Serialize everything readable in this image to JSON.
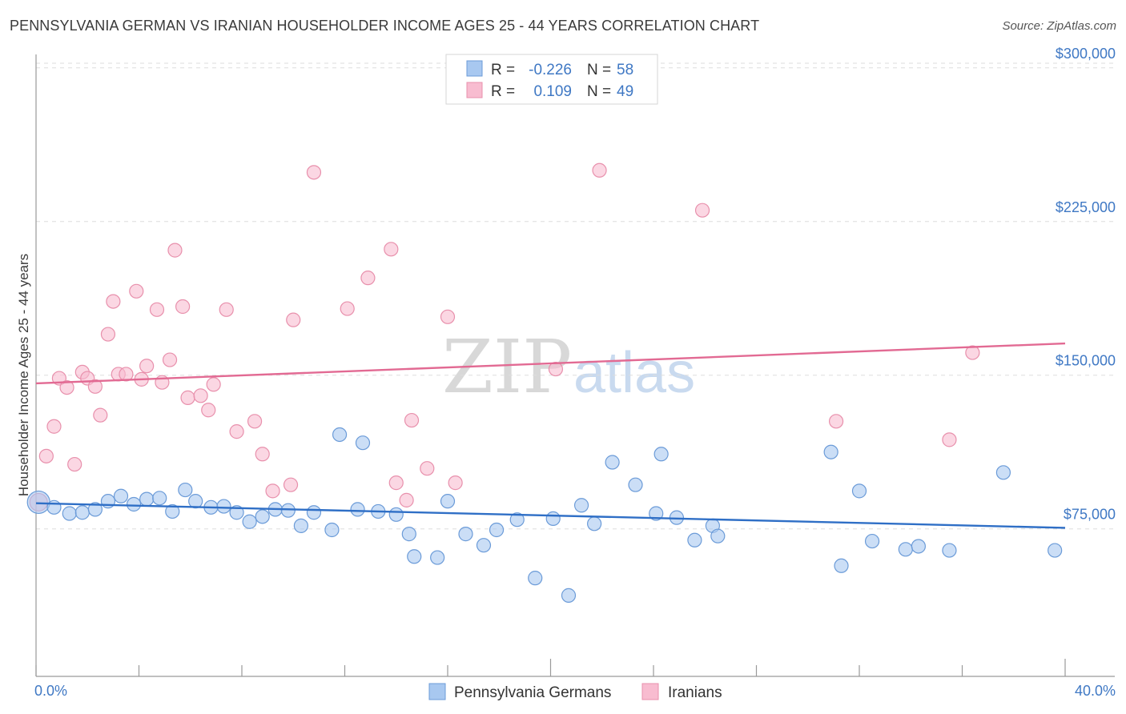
{
  "title": "PENNSYLVANIA GERMAN VS IRANIAN HOUSEHOLDER INCOME AGES 25 - 44 YEARS CORRELATION CHART",
  "source": "Source: ZipAtlas.com",
  "watermark": {
    "zip": "ZIP",
    "atlas": "atlas"
  },
  "legend": {
    "r_label": "R =",
    "n_label": "N =",
    "rows": [
      {
        "r": "-0.226",
        "n": "58",
        "color": "#a8c8f0",
        "stroke": "#6b9bd8"
      },
      {
        "r": "0.109",
        "n": "49",
        "color": "#f8bcd0",
        "stroke": "#e890ac"
      }
    ]
  },
  "bottom_legend": [
    "Pennsylvania Germans",
    "Iranians"
  ],
  "chart_data": {
    "type": "scatter",
    "title": "PENNSYLVANIA GERMAN VS IRANIAN HOUSEHOLDER INCOME AGES 25 - 44 YEARS CORRELATION CHART",
    "xlabel": "",
    "ylabel": "Householder Income Ages 25 - 44 years",
    "xlim": [
      0,
      40
    ],
    "ylim": [
      3000,
      305000
    ],
    "x_tick_labels": [
      "0.0%",
      "40.0%"
    ],
    "y_ticks": [
      75000,
      150000,
      225000,
      300000
    ],
    "y_tick_labels": [
      "$75,000",
      "$150,000",
      "$225,000",
      "$300,000"
    ],
    "grid": true,
    "series": [
      {
        "name": "Pennsylvania Germans",
        "color": "#a8c8f0",
        "stroke": "#6b9bd8",
        "trend": {
          "x": [
            0,
            40
          ],
          "y": [
            87500,
            75500
          ],
          "color": "#2f6fc6"
        },
        "points": [
          [
            0.1,
            88000
          ],
          [
            0.7,
            85500
          ],
          [
            1.3,
            82500
          ],
          [
            1.8,
            83000
          ],
          [
            2.3,
            84500
          ],
          [
            2.8,
            88500
          ],
          [
            3.3,
            91000
          ],
          [
            3.8,
            87000
          ],
          [
            4.3,
            89500
          ],
          [
            4.8,
            90000
          ],
          [
            5.3,
            83500
          ],
          [
            5.8,
            94000
          ],
          [
            6.2,
            88500
          ],
          [
            6.8,
            85500
          ],
          [
            7.3,
            86000
          ],
          [
            7.8,
            83000
          ],
          [
            8.3,
            78500
          ],
          [
            8.8,
            81000
          ],
          [
            9.3,
            84500
          ],
          [
            9.8,
            84000
          ],
          [
            10.3,
            76500
          ],
          [
            10.8,
            83000
          ],
          [
            11.5,
            74500
          ],
          [
            11.8,
            121000
          ],
          [
            12.5,
            84500
          ],
          [
            12.7,
            117000
          ],
          [
            13.3,
            83500
          ],
          [
            14.0,
            82000
          ],
          [
            14.5,
            72500
          ],
          [
            14.7,
            61500
          ],
          [
            15.6,
            61000
          ],
          [
            16.0,
            88500
          ],
          [
            16.7,
            72500
          ],
          [
            17.4,
            67000
          ],
          [
            17.9,
            74500
          ],
          [
            18.7,
            79500
          ],
          [
            19.4,
            51000
          ],
          [
            20.1,
            80000
          ],
          [
            20.7,
            42500
          ],
          [
            21.2,
            86500
          ],
          [
            21.7,
            77500
          ],
          [
            22.4,
            107500
          ],
          [
            23.3,
            96500
          ],
          [
            24.1,
            82500
          ],
          [
            24.3,
            111500
          ],
          [
            24.9,
            80500
          ],
          [
            25.6,
            69500
          ],
          [
            26.3,
            76500
          ],
          [
            26.5,
            71500
          ],
          [
            30.9,
            112500
          ],
          [
            31.3,
            57000
          ],
          [
            32.0,
            93500
          ],
          [
            32.5,
            69000
          ],
          [
            33.8,
            65000
          ],
          [
            34.3,
            66500
          ],
          [
            35.5,
            64500
          ],
          [
            37.6,
            102500
          ],
          [
            39.6,
            64500
          ]
        ]
      },
      {
        "name": "Iranians",
        "color": "#f8bcd0",
        "stroke": "#e890ac",
        "trend": {
          "x": [
            0,
            40
          ],
          "y": [
            146000,
            165500
          ],
          "color": "#e26a93"
        },
        "points": [
          [
            0.1,
            88000
          ],
          [
            0.4,
            110500
          ],
          [
            0.7,
            125000
          ],
          [
            0.9,
            148500
          ],
          [
            1.2,
            144000
          ],
          [
            1.5,
            106500
          ],
          [
            1.8,
            151500
          ],
          [
            2.0,
            148500
          ],
          [
            2.3,
            144500
          ],
          [
            2.5,
            130500
          ],
          [
            2.8,
            170000
          ],
          [
            3.0,
            186000
          ],
          [
            3.2,
            150500
          ],
          [
            3.5,
            150500
          ],
          [
            3.9,
            191000
          ],
          [
            4.1,
            148000
          ],
          [
            4.3,
            154500
          ],
          [
            4.7,
            182000
          ],
          [
            4.9,
            146500
          ],
          [
            5.2,
            157500
          ],
          [
            5.4,
            211000
          ],
          [
            5.7,
            183500
          ],
          [
            5.9,
            139000
          ],
          [
            6.4,
            140000
          ],
          [
            6.7,
            133000
          ],
          [
            6.9,
            145500
          ],
          [
            7.4,
            182000
          ],
          [
            7.8,
            122500
          ],
          [
            8.5,
            127500
          ],
          [
            8.8,
            111500
          ],
          [
            9.2,
            93500
          ],
          [
            9.9,
            96500
          ],
          [
            10.0,
            177000
          ],
          [
            10.8,
            249000
          ],
          [
            12.1,
            182500
          ],
          [
            12.9,
            197500
          ],
          [
            13.8,
            211500
          ],
          [
            14.0,
            97500
          ],
          [
            14.4,
            89000
          ],
          [
            14.6,
            128000
          ],
          [
            15.2,
            104500
          ],
          [
            16.0,
            178500
          ],
          [
            16.3,
            97500
          ],
          [
            20.2,
            153000
          ],
          [
            21.9,
            250000
          ],
          [
            25.9,
            230500
          ],
          [
            31.1,
            127500
          ],
          [
            35.5,
            118500
          ],
          [
            36.4,
            161000
          ]
        ]
      }
    ]
  }
}
